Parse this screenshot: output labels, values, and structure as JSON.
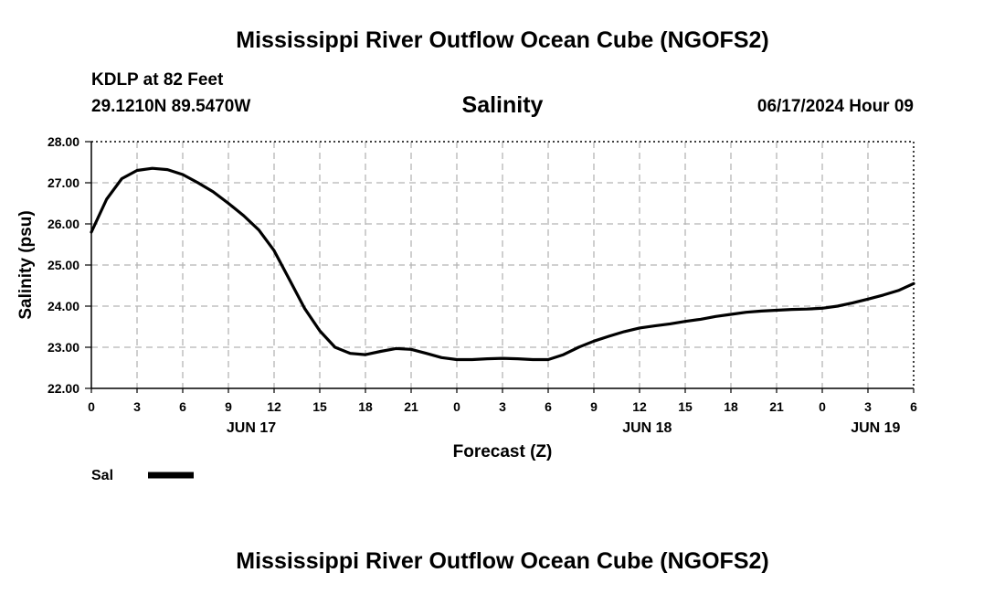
{
  "header": {
    "main_title": "Mississippi River Outflow Ocean Cube (NGOFS2)",
    "station_name": "KDLP at 82 Feet",
    "station_coords": "29.1210N  89.5470W",
    "timestamp": "06/17/2024 Hour 09"
  },
  "footer": {
    "title": "Mississippi River Outflow Ocean Cube (NGOFS2)"
  },
  "chart_data": {
    "type": "line",
    "title": "Salinity",
    "xlabel": "Forecast (Z)",
    "ylabel": "Salinity (psu)",
    "xlim": [
      0,
      54
    ],
    "ylim": [
      22,
      28
    ],
    "grid": true,
    "line_color": "#000000",
    "y_ticks": [
      "22.00",
      "23.00",
      "24.00",
      "25.00",
      "26.00",
      "27.00",
      "28.00"
    ],
    "x_tick_labels": [
      "0",
      "3",
      "6",
      "9",
      "12",
      "15",
      "18",
      "21",
      "0",
      "3",
      "6",
      "9",
      "12",
      "15",
      "18",
      "21",
      "0",
      "3",
      "6"
    ],
    "day_labels": [
      {
        "x": 10.5,
        "label": "JUN 17"
      },
      {
        "x": 36.5,
        "label": "JUN 18"
      },
      {
        "x": 51.5,
        "label": "JUN 19"
      }
    ],
    "legend": [
      {
        "name": "Sal",
        "position": "bottom-left"
      }
    ],
    "series": [
      {
        "name": "Sal",
        "x": [
          0,
          1,
          2,
          3,
          4,
          5,
          6,
          7,
          8,
          9,
          10,
          11,
          12,
          13,
          14,
          15,
          16,
          17,
          18,
          19,
          20,
          21,
          22,
          23,
          24,
          25,
          26,
          27,
          28,
          29,
          30,
          31,
          32,
          33,
          34,
          35,
          36,
          37,
          38,
          39,
          40,
          41,
          42,
          43,
          44,
          45,
          46,
          47,
          48,
          49,
          50,
          51,
          52,
          53,
          54
        ],
        "y": [
          25.8,
          26.6,
          27.1,
          27.3,
          27.35,
          27.32,
          27.2,
          27.0,
          26.78,
          26.5,
          26.2,
          25.85,
          25.35,
          24.65,
          23.95,
          23.4,
          23.0,
          22.85,
          22.82,
          22.9,
          22.97,
          22.95,
          22.85,
          22.75,
          22.7,
          22.7,
          22.72,
          22.73,
          22.72,
          22.7,
          22.7,
          22.82,
          23.0,
          23.15,
          23.27,
          23.38,
          23.47,
          23.52,
          23.57,
          23.63,
          23.68,
          23.75,
          23.8,
          23.85,
          23.88,
          23.9,
          23.92,
          23.93,
          23.95,
          24.0,
          24.08,
          24.17,
          24.27,
          24.38,
          24.55
        ]
      }
    ]
  }
}
